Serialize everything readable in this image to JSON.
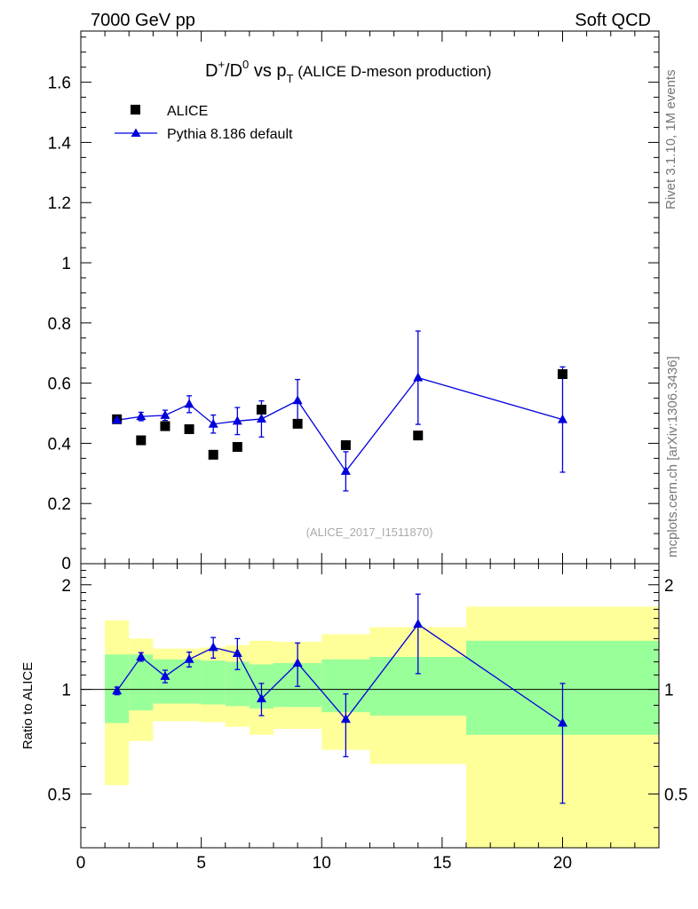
{
  "header": {
    "energy_label": "7000 GeV pp",
    "process_label": "Soft QCD"
  },
  "side_labels": {
    "rivet": "Rivet 3.1.10,  1M events",
    "mcplots": "mcplots.cern.ch [arXiv:1306.3436]"
  },
  "chart_data": [
    {
      "type": "scatter",
      "panel": "main",
      "title": {
        "p1": "D",
        "p1_sup": "+",
        "p2": "/D",
        "p2_sup": "0",
        "p3": " vs p",
        "p3_sub": "T",
        "p4": " (ALICE D-meson production)"
      },
      "analysis_label": "(ALICE_2017_I1511870)",
      "xlim": [
        0,
        24
      ],
      "ylim": [
        0,
        1.77
      ],
      "y_ticks": [
        0.2,
        0.4,
        0.6,
        0.8,
        1,
        1.2,
        1.4,
        1.6
      ],
      "y_tick_labels": [
        "0.2",
        "0.4",
        "0.6",
        "0.8",
        "1",
        "1.2",
        "1.4",
        "1.6"
      ],
      "partial_label": "0",
      "legend_position": "top-left",
      "series": [
        {
          "name": "ALICE",
          "marker": "square",
          "color": "#000000",
          "x": [
            1.5,
            2.5,
            3.5,
            4.5,
            5.5,
            6.5,
            7.5,
            9,
            11,
            14,
            20
          ],
          "y": [
            0.48,
            0.41,
            0.457,
            0.447,
            0.362,
            0.388,
            0.512,
            0.465,
            0.394,
            0.426,
            0.63
          ]
        },
        {
          "name": "Pythia 8.186 default",
          "marker": "triangle",
          "color": "#0000dd",
          "x": [
            1.5,
            2.5,
            3.5,
            4.5,
            5.5,
            6.5,
            7.5,
            9,
            11,
            14,
            20
          ],
          "y": [
            0.477,
            0.489,
            0.493,
            0.53,
            0.464,
            0.474,
            0.481,
            0.542,
            0.307,
            0.618,
            0.479
          ],
          "err": [
            0.008,
            0.014,
            0.017,
            0.028,
            0.03,
            0.045,
            0.06,
            0.07,
            0.065,
            0.155,
            0.175
          ]
        }
      ]
    },
    {
      "type": "scatter",
      "panel": "ratio",
      "ylabel": "Ratio to ALICE",
      "xlim": [
        0,
        24
      ],
      "ylim": [
        0.35,
        2.3
      ],
      "y_scale": "log",
      "y_ticks": [
        0.5,
        1,
        2
      ],
      "y_tick_labels": [
        "0.5",
        "1",
        "2"
      ],
      "x_ticks": [
        0,
        5,
        10,
        15,
        20
      ],
      "x_tick_labels": [
        "0",
        "5",
        "10",
        "15",
        "20"
      ],
      "reference_line": 1,
      "bands": [
        {
          "x1": 1,
          "x2": 2,
          "inner": [
            0.8,
            1.26
          ],
          "outer": [
            0.53,
            1.58
          ]
        },
        {
          "x1": 2,
          "x2": 3,
          "inner": [
            0.87,
            1.26
          ],
          "outer": [
            0.71,
            1.4
          ]
        },
        {
          "x1": 3,
          "x2": 5,
          "inner": [
            0.91,
            1.22
          ],
          "outer": [
            0.81,
            1.31
          ]
        },
        {
          "x1": 5,
          "x2": 6,
          "inner": [
            0.905,
            1.21
          ],
          "outer": [
            0.805,
            1.32
          ]
        },
        {
          "x1": 6,
          "x2": 7,
          "inner": [
            0.895,
            1.2
          ],
          "outer": [
            0.78,
            1.34
          ]
        },
        {
          "x1": 7,
          "x2": 8,
          "inner": [
            0.88,
            1.18
          ],
          "outer": [
            0.74,
            1.38
          ]
        },
        {
          "x1": 8,
          "x2": 10,
          "inner": [
            0.89,
            1.19
          ],
          "outer": [
            0.77,
            1.37
          ]
        },
        {
          "x1": 10,
          "x2": 12,
          "inner": [
            0.86,
            1.22
          ],
          "outer": [
            0.67,
            1.44
          ]
        },
        {
          "x1": 12,
          "x2": 16,
          "inner": [
            0.84,
            1.24
          ],
          "outer": [
            0.61,
            1.51
          ]
        },
        {
          "x1": 16,
          "x2": 24,
          "inner": [
            0.74,
            1.38
          ],
          "outer": [
            0.35,
            1.73
          ]
        }
      ],
      "series": [
        {
          "name": "Pythia 8.186 default",
          "marker": "triangle",
          "color": "#0000dd",
          "x": [
            1.5,
            2.5,
            3.5,
            4.5,
            5.5,
            6.5,
            7.5,
            9,
            11,
            14,
            20
          ],
          "y": [
            0.99,
            1.24,
            1.09,
            1.22,
            1.32,
            1.27,
            0.94,
            1.19,
            0.82,
            1.54,
            0.8
          ],
          "err_low": [
            0.025,
            0.035,
            0.045,
            0.06,
            0.09,
            0.13,
            0.1,
            0.17,
            0.18,
            0.43,
            0.33
          ],
          "err_high": [
            0.025,
            0.035,
            0.045,
            0.06,
            0.09,
            0.13,
            0.1,
            0.17,
            0.15,
            0.34,
            0.24
          ]
        }
      ]
    }
  ]
}
